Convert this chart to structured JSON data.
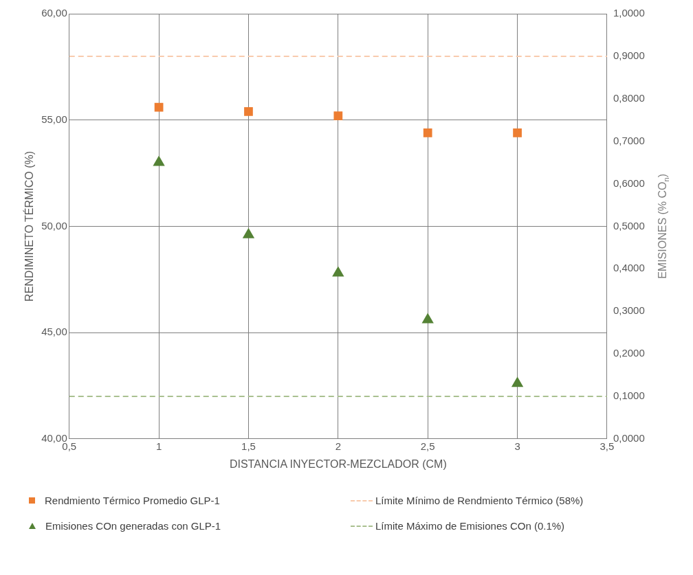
{
  "chart_data": {
    "type": "scatter",
    "xlabel": "DISTANCIA INYECTOR-MEZCLADOR (CM)",
    "ylabel": "RENDIMINETO TÉRMICO (%)",
    "y2label": "EMISIONES (% CO$_{n}$)",
    "x": [
      1,
      1.5,
      2,
      2.5,
      3
    ],
    "series": [
      {
        "name": "Rendmiento Térmico Promedio GLP-1",
        "color": "#ed7d31",
        "marker": "square",
        "values": [
          55.6,
          55.4,
          55.2,
          54.4,
          54.4
        ]
      },
      {
        "name": "Emisiones COn generadas con GLP-1",
        "color": "#548235",
        "marker": "triangle",
        "axis": "y2",
        "values": [
          0.65,
          0.48,
          0.39,
          0.28,
          0.13
        ]
      }
    ],
    "xlim": [
      0.5,
      3.5
    ],
    "xticks": [
      {
        "value": 0.5,
        "label": "0,5"
      },
      {
        "value": 1,
        "label": "1"
      },
      {
        "value": 1.5,
        "label": "1,5"
      },
      {
        "value": 2,
        "label": "2"
      },
      {
        "value": 2.5,
        "label": "2,5"
      },
      {
        "value": 3,
        "label": "3"
      },
      {
        "value": 3.5,
        "label": "3,5"
      }
    ],
    "ylim": [
      40,
      60
    ],
    "yticks": [
      {
        "value": 40,
        "label": "40,00"
      },
      {
        "value": 45,
        "label": "45,00"
      },
      {
        "value": 50,
        "label": "50,00"
      },
      {
        "value": 55,
        "label": "55,00"
      },
      {
        "value": 60,
        "label": "60,00"
      }
    ],
    "y2lim": [
      0,
      1
    ],
    "y2ticks": [
      {
        "value": 0,
        "label": "0,0000"
      },
      {
        "value": 0.1,
        "label": "0,1000"
      },
      {
        "value": 0.2,
        "label": "0,2000"
      },
      {
        "value": 0.3,
        "label": "0,3000"
      },
      {
        "value": 0.4,
        "label": "0,4000"
      },
      {
        "value": 0.5,
        "label": "0,5000"
      },
      {
        "value": 0.6,
        "label": "0,6000"
      },
      {
        "value": 0.7,
        "label": "0,7000"
      },
      {
        "value": 0.8,
        "label": "0,8000"
      },
      {
        "value": 0.9,
        "label": "0,9000"
      },
      {
        "value": 1,
        "label": "1,0000"
      }
    ],
    "ref_lines": [
      {
        "axis": "y",
        "value": 58,
        "label": "Límite Mínimo de Rendmiento Térmico (58%)",
        "color": "#f8cbad",
        "line_style": "dashed"
      },
      {
        "axis": "y2",
        "value": 0.1,
        "label": "Límite Máximo de Emisiones COn (0.1%)",
        "color": "#a9c08f",
        "line_style": "dashed"
      }
    ],
    "grid": true,
    "legend": "bottom"
  }
}
